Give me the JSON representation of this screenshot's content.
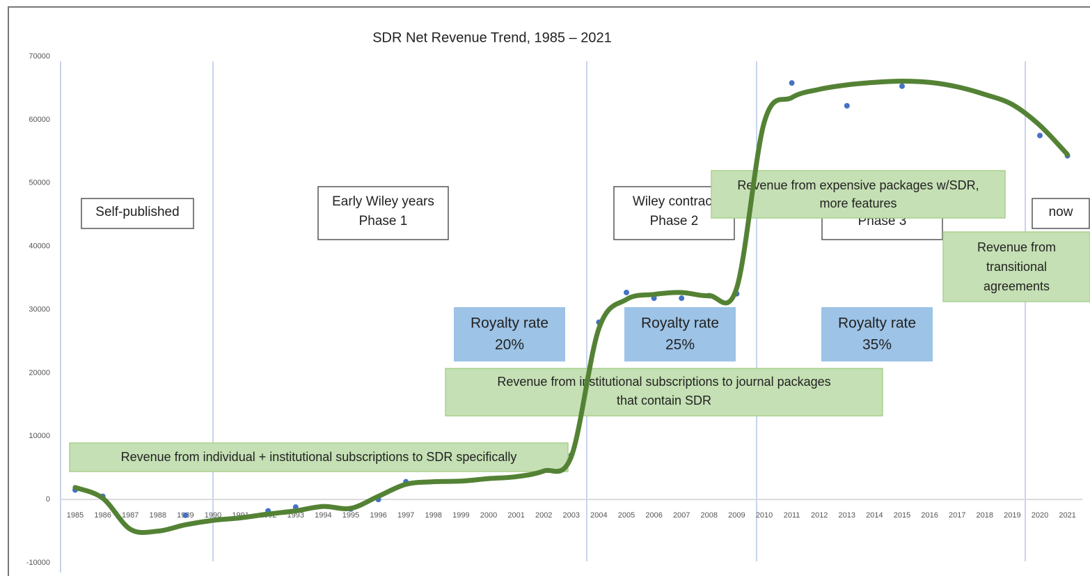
{
  "chart_data": {
    "type": "scatter_trend",
    "title": "SDR Net Revenue Trend, 1985 – 2021",
    "categories": [
      "1985",
      "1986",
      "1987",
      "1988",
      "1989",
      "1990",
      "1991",
      "1992",
      "1993",
      "1994",
      "1995",
      "1996",
      "1997",
      "1998",
      "1999",
      "2000",
      "2001",
      "2002",
      "2003",
      "2004",
      "2005",
      "2006",
      "2007",
      "2008",
      "2009",
      "2010",
      "2011",
      "2012",
      "2013",
      "2014",
      "2015",
      "2016",
      "2017",
      "2018",
      "2019",
      "2020",
      "2021"
    ],
    "series": [
      {
        "color": "#4472c4",
        "values": [
          1500,
          500,
          null,
          null,
          -2500,
          null,
          null,
          -1800,
          -1200,
          null,
          -1500,
          0,
          2800,
          null,
          null,
          null,
          null,
          null,
          7000,
          28000,
          32700,
          31800,
          31800,
          32200,
          32500,
          null,
          65800,
          null,
          62200,
          null,
          65300,
          null,
          null,
          null,
          null,
          57500,
          54300
        ]
      },
      {
        "color": "#548235",
        "values": [
          1900,
          200,
          -4700,
          -5000,
          -4000,
          -3300,
          -2900,
          -2300,
          -1800,
          -1100,
          -1400,
          500,
          2400,
          2800,
          2900,
          3300,
          3600,
          4500,
          6800,
          27000,
          31600,
          32400,
          32700,
          32200,
          33400,
          59600,
          63500,
          64800,
          65500,
          65900,
          66100,
          65900,
          65200,
          64000,
          62400,
          59100,
          54500
        ]
      }
    ],
    "ylim": [
      -10000,
      70000
    ],
    "yticks": [
      -10000,
      0,
      10000,
      20000,
      30000,
      40000,
      50000,
      60000,
      70000
    ],
    "phase_labels": [
      [
        "Self-published"
      ],
      [
        "Early Wiley years",
        "Phase 1"
      ],
      [
        "Wiley contract",
        "Phase 2"
      ],
      [
        "Phase 3"
      ],
      [
        "now"
      ]
    ],
    "royalty_labels": [
      [
        "Royalty rate",
        "20%"
      ],
      [
        "Royalty rate",
        "25%"
      ],
      [
        "Royalty rate",
        "35%"
      ]
    ],
    "revenue_notes": [
      [
        "Revenue from individual + institutional subscriptions to SDR specifically"
      ],
      [
        "Revenue from institutional subscriptions to journal packages",
        "that contain SDR"
      ],
      [
        "Revenue from expensive packages w/SDR,",
        "more features"
      ],
      [
        "Revenue from",
        "transitional",
        "agreements"
      ]
    ]
  }
}
